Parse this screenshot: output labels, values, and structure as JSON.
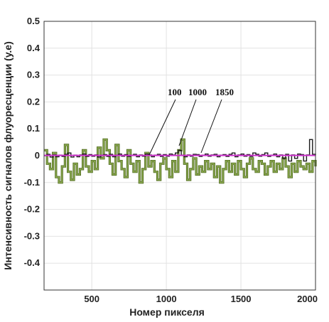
{
  "chart_data": {
    "type": "line",
    "xlabel": "Номер пикселя",
    "ylabel": "Интенсивность сигналов флуоресценции (у.е)",
    "xlim": [
      180,
      2000
    ],
    "ylim": [
      -0.5,
      0.5
    ],
    "xticks": [
      500,
      1000,
      1500,
      2000
    ],
    "yticks": [
      -0.4,
      -0.3,
      -0.2,
      -0.1,
      0,
      0.1,
      0.2,
      0.3,
      0.4,
      0.5
    ],
    "ytick_labels": [
      "-0.4",
      "-0.3",
      "-0.2",
      "-0.1",
      "0",
      "0.1",
      "0.2",
      "0.3",
      "0.4",
      "0.5"
    ],
    "xtick_labels": [
      "500",
      "1000",
      "1500",
      "2000"
    ],
    "grid": true,
    "annotations": [
      "100",
      "1000",
      "1850"
    ],
    "colors": {
      "series_100": "#8aa84e",
      "series_1000": "#1a1a1a",
      "series_1850": "#cc33cc"
    },
    "series": [
      {
        "label": "100",
        "x": [
          180,
          200,
          220,
          240,
          260,
          280,
          300,
          320,
          340,
          360,
          380,
          400,
          420,
          440,
          460,
          480,
          500,
          520,
          540,
          560,
          580,
          600,
          620,
          640,
          660,
          680,
          700,
          720,
          740,
          760,
          780,
          800,
          820,
          840,
          860,
          880,
          900,
          920,
          940,
          960,
          980,
          1000,
          1020,
          1040,
          1060,
          1080,
          1100,
          1120,
          1140,
          1160,
          1180,
          1200,
          1220,
          1240,
          1260,
          1280,
          1300,
          1320,
          1340,
          1360,
          1380,
          1400,
          1420,
          1440,
          1460,
          1480,
          1500,
          1520,
          1540,
          1560,
          1580,
          1600,
          1620,
          1640,
          1660,
          1680,
          1700,
          1720,
          1740,
          1760,
          1780,
          1800,
          1820,
          1840,
          1860,
          1880,
          1900,
          1920,
          1940,
          1960,
          1980,
          2000
        ],
        "y": [
          0.02,
          -0.03,
          -0.05,
          0.01,
          -0.08,
          -0.1,
          -0.04,
          0.04,
          -0.06,
          -0.09,
          -0.03,
          -0.07,
          -0.05,
          0.02,
          -0.04,
          -0.06,
          -0.02,
          -0.05,
          0.03,
          -0.01,
          0.06,
          0.02,
          -0.03,
          -0.07,
          0.04,
          -0.02,
          -0.05,
          -0.08,
          0.02,
          -0.03,
          -0.06,
          -0.02,
          -0.1,
          -0.05,
          0.01,
          -0.04,
          -0.02,
          -0.06,
          -0.09,
          -0.03,
          -0.01,
          -0.05,
          -0.08,
          -0.02,
          -0.06,
          0.02,
          0.06,
          -0.03,
          -0.09,
          -0.05,
          -0.01,
          -0.07,
          -0.04,
          -0.06,
          -0.02,
          -0.05,
          -0.03,
          -0.08,
          -0.04,
          -0.1,
          -0.05,
          -0.02,
          -0.06,
          -0.03,
          -0.07,
          -0.02,
          -0.05,
          -0.08,
          -0.03,
          -0.01,
          -0.05,
          -0.06,
          -0.02,
          -0.03,
          -0.07,
          -0.04,
          -0.02,
          -0.06,
          -0.03,
          -0.05,
          -0.01,
          -0.04,
          -0.08,
          -0.03,
          -0.06,
          -0.02,
          -0.04,
          -0.05,
          -0.03,
          -0.06,
          -0.02,
          -0.04
        ]
      },
      {
        "label": "1000",
        "x": [
          180,
          200,
          220,
          240,
          260,
          280,
          300,
          320,
          340,
          360,
          380,
          400,
          420,
          440,
          460,
          480,
          500,
          520,
          540,
          560,
          580,
          600,
          620,
          640,
          660,
          680,
          700,
          720,
          740,
          760,
          780,
          800,
          820,
          840,
          860,
          880,
          900,
          920,
          940,
          960,
          980,
          1000,
          1020,
          1040,
          1060,
          1080,
          1100,
          1120,
          1140,
          1160,
          1180,
          1200,
          1220,
          1240,
          1260,
          1280,
          1300,
          1320,
          1340,
          1360,
          1380,
          1400,
          1420,
          1440,
          1460,
          1480,
          1500,
          1520,
          1540,
          1560,
          1580,
          1600,
          1620,
          1640,
          1660,
          1680,
          1700,
          1720,
          1740,
          1760,
          1780,
          1800,
          1820,
          1840,
          1860,
          1880,
          1900,
          1920,
          1940,
          1960,
          1980,
          2000
        ],
        "y": [
          0.0,
          0.005,
          -0.005,
          0.003,
          -0.004,
          0.002,
          -0.003,
          0.005,
          0.01,
          -0.005,
          0.002,
          -0.004,
          0.003,
          0.006,
          -0.003,
          0.004,
          -0.002,
          0.003,
          -0.005,
          0.002,
          0.004,
          -0.003,
          0.005,
          -0.004,
          0.002,
          0.006,
          -0.002,
          0.004,
          -0.003,
          0.002,
          0.005,
          -0.004,
          0.003,
          -0.002,
          0.006,
          0.003,
          -0.004,
          0.002,
          0.005,
          -0.003,
          0.004,
          -0.002,
          0.006,
          0.003,
          0.01,
          0.02,
          0.002,
          -0.004,
          0.003,
          -0.002,
          0.005,
          0.004,
          -0.003,
          0.002,
          0.006,
          -0.002,
          0.003,
          0.005,
          -0.004,
          0.002,
          0.004,
          -0.003,
          0.005,
          0.01,
          -0.004,
          0.003,
          0.006,
          -0.002,
          0.004,
          -0.003,
          0.01,
          0.005,
          -0.002,
          0.004,
          0.01,
          -0.003,
          0.002,
          0.006,
          -0.004,
          0.003,
          -0.01,
          0.005,
          -0.02,
          0.003,
          -0.01,
          0.006,
          0.004,
          -0.02,
          0.003,
          0.06,
          0.005,
          0.002
        ]
      },
      {
        "label": "1850",
        "x": [
          180,
          2000
        ],
        "y": [
          0.001,
          0.001
        ]
      }
    ]
  }
}
